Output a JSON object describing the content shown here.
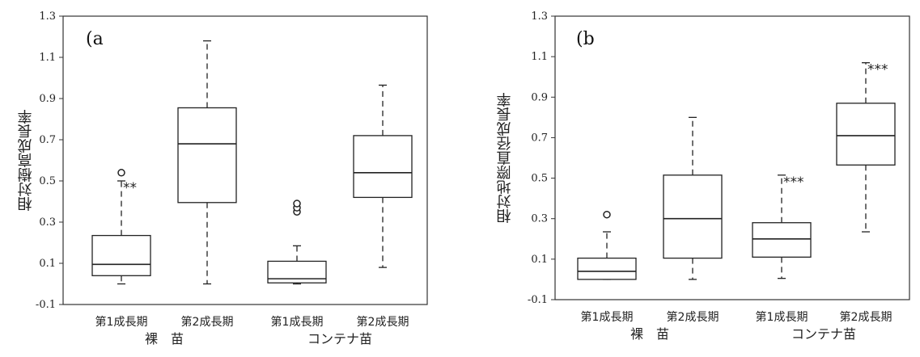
{
  "chart_data": [
    {
      "type": "box",
      "panel_label": "(a",
      "ylabel": "相対樹高成長率",
      "ylim": [
        -0.1,
        1.3
      ],
      "yticks": [
        "-0.1",
        "0.1",
        "0.3",
        "0.5",
        "0.7",
        "0.9",
        "1.1",
        "1.3"
      ],
      "categories": [
        "第1成長期",
        "第2成長期",
        "第1成長期",
        "第2成長期"
      ],
      "groups": [
        {
          "label": "裸　苗",
          "categories": [
            0,
            1
          ]
        },
        {
          "label": "コンテナ苗",
          "categories": [
            2,
            3
          ]
        }
      ],
      "boxes": [
        {
          "min": 0.0,
          "q1": 0.04,
          "median": 0.095,
          "q3": 0.235,
          "max": 0.5,
          "outliers": [
            0.54
          ],
          "sig": "**"
        },
        {
          "min": 0.0,
          "q1": 0.395,
          "median": 0.68,
          "q3": 0.855,
          "max": 1.18,
          "outliers": [],
          "sig": ""
        },
        {
          "min": 0.0,
          "q1": 0.005,
          "median": 0.025,
          "q3": 0.11,
          "max": 0.185,
          "outliers": [
            0.35,
            0.37,
            0.39
          ],
          "sig": ""
        },
        {
          "min": 0.08,
          "q1": 0.42,
          "median": 0.54,
          "q3": 0.72,
          "max": 0.965,
          "outliers": [],
          "sig": ""
        }
      ]
    },
    {
      "type": "box",
      "panel_label": "(b",
      "ylabel": "相対地際直径成長率",
      "ylim": [
        -0.1,
        1.3
      ],
      "yticks": [
        "-0.1",
        "0.1",
        "0.3",
        "0.5",
        "0.7",
        "0.9",
        "1.1",
        "1.3"
      ],
      "categories": [
        "第1成長期",
        "第2成長期",
        "第1成長期",
        "第2成長期"
      ],
      "groups": [
        {
          "label": "裸　苗",
          "categories": [
            0,
            1
          ]
        },
        {
          "label": "コンテナ苗",
          "categories": [
            2,
            3
          ]
        }
      ],
      "boxes": [
        {
          "min": 0.0,
          "q1": 0.0,
          "median": 0.04,
          "q3": 0.105,
          "max": 0.235,
          "outliers": [
            0.32
          ],
          "sig": ""
        },
        {
          "min": 0.0,
          "q1": 0.105,
          "median": 0.3,
          "q3": 0.515,
          "max": 0.8,
          "outliers": [],
          "sig": ""
        },
        {
          "min": 0.005,
          "q1": 0.11,
          "median": 0.2,
          "q3": 0.28,
          "max": 0.515,
          "outliers": [],
          "sig": "***"
        },
        {
          "min": 0.235,
          "q1": 0.565,
          "median": 0.71,
          "q3": 0.87,
          "max": 1.07,
          "outliers": [],
          "sig": "***"
        }
      ]
    }
  ]
}
